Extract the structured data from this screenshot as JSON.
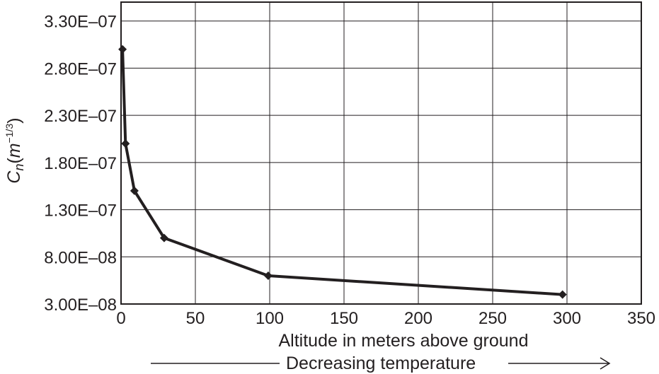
{
  "chart_data": {
    "type": "line",
    "xlabel": "Altitude in meters above ground",
    "ylabel": "Cn(m−1/3)",
    "ylabel_parts": {
      "base": "C",
      "sub": "n",
      "paren_open": "(",
      "unit": "m",
      "exp": "−1/3",
      "paren_close": ")"
    },
    "annotation": "Decreasing temperature",
    "xlim": [
      0,
      350
    ],
    "ylim": [
      3e-08,
      3.5e-07
    ],
    "xticks": [
      0,
      50,
      100,
      150,
      200,
      250,
      300,
      350
    ],
    "xtick_labels": [
      "0",
      "50",
      "100",
      "150",
      "200",
      "250",
      "300",
      "350"
    ],
    "yticks": [
      3e-08,
      8e-08,
      1.3e-07,
      1.8e-07,
      2.3e-07,
      2.8e-07,
      3.3e-07
    ],
    "ytick_labels": [
      "3.00E–08",
      "8.00E–08",
      "1.30E–07",
      "1.80E–07",
      "2.30E–07",
      "2.80E–07",
      "3.30E–07"
    ],
    "grid": true,
    "series": [
      {
        "x": [
          1,
          3,
          9,
          29,
          99,
          297
        ],
        "y": [
          3e-07,
          2e-07,
          1.5e-07,
          1e-07,
          6e-08,
          4e-08
        ]
      }
    ]
  }
}
